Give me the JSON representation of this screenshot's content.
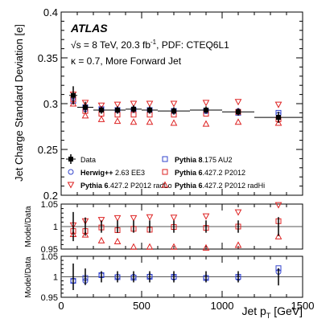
{
  "chart_data": {
    "type": "scatter",
    "experiment": "ATLAS",
    "info_line_1_prefix": "√s = 8 TeV, 20.3 fb",
    "info_line_1_sup": "-1",
    "info_line_1_suffix": ", PDF: CTEQ6L1",
    "info_line_2": "κ = 0.7, More Forward Jet",
    "xlabel_main": "Jet p",
    "xlabel_sub": "T",
    "xlabel_unit": " [GeV]",
    "ylabel": "Jet Charge Standard Deviation [e]",
    "ratio_ylabel": "Model/Data",
    "xlim": [
      0,
      1500
    ],
    "x_ticks": [
      0,
      500,
      1000,
      1500
    ],
    "x_tick_labels": [
      "0",
      "500",
      "1000",
      "1500"
    ],
    "ylim": [
      0.2,
      0.4
    ],
    "y_ticks": [
      0.2,
      0.25,
      0.3,
      0.35,
      0.4
    ],
    "y_tick_labels": [
      "0.2",
      "0.25",
      "0.3",
      "0.35",
      "0.4"
    ],
    "ratio_ylim": [
      0.95,
      1.05
    ],
    "ratio_ticks": [
      0.95,
      1.0,
      1.05
    ],
    "ratio_tick_labels": [
      "0.95",
      "1",
      "1.05"
    ],
    "x": [
      75,
      150,
      250,
      350,
      450,
      550,
      700,
      900,
      1100,
      1350
    ],
    "x_err": [
      25,
      50,
      50,
      50,
      50,
      50,
      100,
      100,
      100,
      150
    ],
    "data": {
      "name": "Data",
      "values": [
        0.309,
        0.296,
        0.293,
        0.293,
        0.294,
        0.293,
        0.292,
        0.293,
        0.291,
        0.285
      ],
      "errors": [
        0.01,
        0.006,
        0.004,
        0.004,
        0.004,
        0.004,
        0.004,
        0.004,
        0.004,
        0.006
      ]
    },
    "series": [
      {
        "key": "pythia8",
        "name_bold": "Pythia 8",
        "name_rest": ".175 AU2",
        "color": "#3344cc",
        "marker": "square",
        "values": [
          0.303,
          0.296,
          0.294,
          0.293,
          0.293,
          0.293,
          0.292,
          0.292,
          0.29,
          0.29
        ],
        "ratio": [
          0.99,
          0.997,
          1.004,
          0.999,
          0.998,
          1.0,
          1.0,
          0.997,
          1.0,
          1.021
        ]
      },
      {
        "key": "herwig",
        "name_bold": "Herwig++",
        "name_rest": " 2.63 EE3",
        "color": "#3344cc",
        "marker": "circle",
        "values": [
          0.306,
          0.294,
          0.294,
          0.293,
          0.294,
          0.293,
          0.292,
          0.292,
          0.292,
          0.288
        ],
        "ratio": [
          0.99,
          0.99,
          1.004,
          1.0,
          1.0,
          1.001,
          0.998,
          0.998,
          0.997,
          1.012
        ]
      },
      {
        "key": "p6",
        "name_bold": "Pythia 6",
        "name_rest": ".427.2 P2012",
        "color": "#dd2222",
        "marker": "square",
        "values": [
          0.305,
          0.292,
          0.289,
          0.288,
          0.288,
          0.288,
          0.288,
          0.289,
          0.291,
          0.283
        ],
        "ratio": [
          0.99,
          0.99,
          0.998,
          0.992,
          0.995,
          0.993,
          0.999,
          0.997,
          1.0,
          1.012
        ]
      },
      {
        "key": "p6lo",
        "name_bold": "Pythia 6",
        "name_rest": ".427.2 P2012 radLo",
        "color": "#dd2222",
        "marker": "triangle-down",
        "values": [
          0.31,
          0.301,
          0.298,
          0.299,
          0.3,
          0.3,
          0.3,
          0.301,
          0.302,
          0.299
        ],
        "ratio": [
          1.003,
          1.012,
          1.015,
          1.019,
          1.019,
          1.021,
          1.02,
          1.023,
          1.032,
          1.048
        ]
      },
      {
        "key": "p6hi",
        "name_bold": "Pythia 6",
        "name_rest": ".427.2 P2012 radHi",
        "color": "#dd2222",
        "marker": "triangle-up",
        "values": [
          0.3,
          0.287,
          0.283,
          0.281,
          0.28,
          0.28,
          0.279,
          0.278,
          0.28,
          0.279
        ],
        "ratio": [
          0.983,
          0.982,
          0.969,
          0.967,
          0.955,
          0.955,
          0.955,
          0.953,
          0.959,
          0.978
        ]
      }
    ],
    "legend": [
      {
        "ref": "data",
        "label_bold": "",
        "label_rest": "Data"
      },
      {
        "ref": "pythia8",
        "label_bold": "Pythia 8",
        "label_rest": ".175 AU2"
      },
      {
        "ref": "herwig",
        "label_bold": "Herwig++",
        "label_rest": " 2.63 EE3"
      },
      {
        "ref": "p6",
        "label_bold": "Pythia 6",
        "label_rest": ".427.2 P2012"
      },
      {
        "ref": "p6lo",
        "label_bold": "Pythia 6",
        "label_rest": ".427.2 P2012 radLo"
      },
      {
        "ref": "p6hi",
        "label_bold": "Pythia 6",
        "label_rest": ".427.2 P2012 radHi"
      }
    ],
    "legend_placement": "bottom",
    "grid": false
  }
}
